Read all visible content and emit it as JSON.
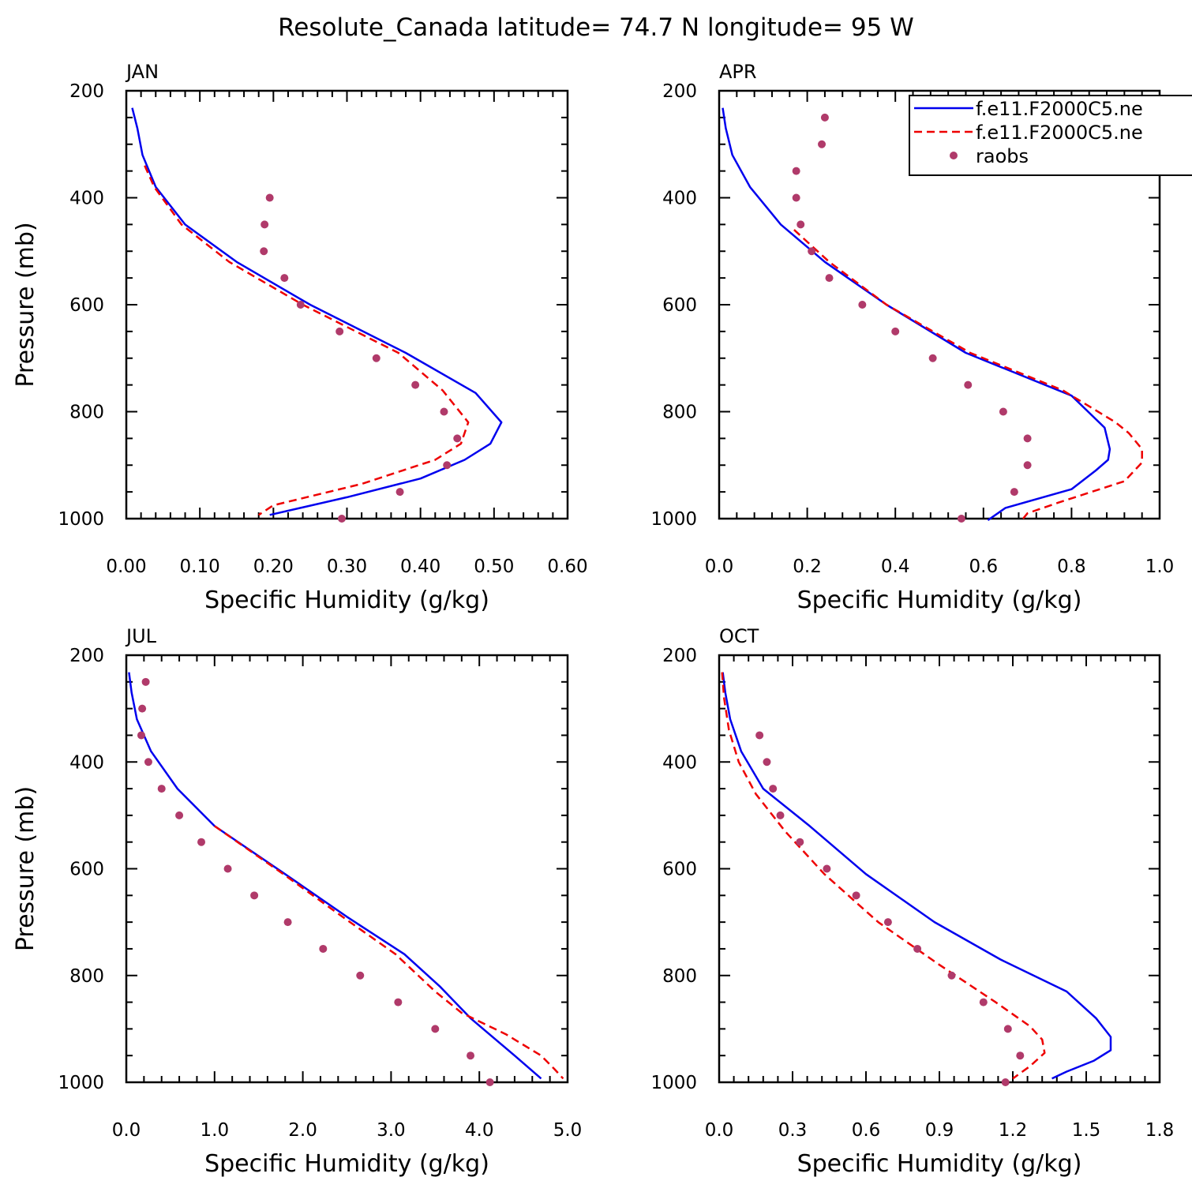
{
  "figure_title": "Resolute_Canada  latitude= 74.7 N longitude= 95 W",
  "legend": {
    "entries": [
      {
        "label": "f.e11.F2000C5.ne",
        "color": "#0000ee",
        "style": "solid"
      },
      {
        "label": "f.e11.F2000C5.ne",
        "color": "#ee0000",
        "style": "dashed"
      },
      {
        "label": "raobs",
        "color": "#b03a6a",
        "style": "dots"
      }
    ]
  },
  "chart_data": [
    {
      "type": "line",
      "title": "JAN",
      "xlabel": "Specific Humidity (g/kg)",
      "ylabel": "Pressure (mb)",
      "xlim": [
        0,
        0.6
      ],
      "ylim": [
        1000,
        200
      ],
      "x_ticks": [
        "0.00",
        "0.10",
        "0.20",
        "0.30",
        "0.40",
        "0.50",
        "0.60"
      ],
      "y_ticks": [
        "200",
        "400",
        "600",
        "800",
        "1000"
      ],
      "series": [
        {
          "name": "f.e11.F2000C5.ne",
          "color": "#0000ee",
          "style": "solid",
          "p": [
            232,
            270,
            320,
            380,
            450,
            520,
            600,
            690,
            765,
            820,
            860,
            890,
            925,
            960,
            993
          ],
          "q": [
            0.008,
            0.015,
            0.022,
            0.04,
            0.08,
            0.15,
            0.25,
            0.38,
            0.475,
            0.51,
            0.495,
            0.46,
            0.4,
            0.3,
            0.195
          ]
        },
        {
          "name": "f.e11.F2000C5.ne",
          "color": "#ee0000",
          "style": "dashed",
          "p": [
            340,
            380,
            450,
            520,
            600,
            690,
            760,
            820,
            860,
            890,
            935,
            975,
            993
          ],
          "q": [
            0.025,
            0.038,
            0.075,
            0.14,
            0.24,
            0.37,
            0.43,
            0.465,
            0.455,
            0.42,
            0.32,
            0.2,
            0.18
          ]
        },
        {
          "name": "raobs",
          "color": "#b03a6a",
          "style": "dots",
          "p": [
            400,
            450,
            500,
            550,
            600,
            650,
            700,
            750,
            800,
            850,
            900,
            950,
            1000
          ],
          "q": [
            0.195,
            0.188,
            0.187,
            0.215,
            0.237,
            0.29,
            0.34,
            0.393,
            0.432,
            0.45,
            0.436,
            0.372,
            0.293
          ]
        }
      ]
    },
    {
      "type": "line",
      "title": "APR",
      "xlabel": "Specific Humidity (g/kg)",
      "ylabel": "",
      "xlim": [
        0,
        1.0
      ],
      "ylim": [
        1000,
        200
      ],
      "x_ticks": [
        "0.0",
        "0.2",
        "0.4",
        "0.6",
        "0.8",
        "1.0"
      ],
      "y_ticks": [
        "200",
        "400",
        "600",
        "800",
        "1000"
      ],
      "series": [
        {
          "name": "f.e11.F2000C5.ne",
          "color": "#0000ee",
          "style": "solid",
          "p": [
            232,
            270,
            320,
            380,
            450,
            520,
            600,
            690,
            770,
            830,
            870,
            890,
            910,
            945,
            980,
            1003
          ],
          "q": [
            0.008,
            0.015,
            0.03,
            0.07,
            0.14,
            0.24,
            0.38,
            0.56,
            0.8,
            0.875,
            0.887,
            0.883,
            0.855,
            0.8,
            0.65,
            0.61
          ]
        },
        {
          "name": "f.e11.F2000C5.ne",
          "color": "#ee0000",
          "style": "dashed",
          "p": [
            460,
            520,
            600,
            690,
            760,
            820,
            840,
            870,
            895,
            930,
            970,
            990,
            1000
          ],
          "q": [
            0.17,
            0.25,
            0.38,
            0.57,
            0.78,
            0.9,
            0.93,
            0.96,
            0.96,
            0.92,
            0.77,
            0.7,
            0.69
          ]
        },
        {
          "name": "raobs",
          "color": "#b03a6a",
          "style": "dots",
          "p": [
            250,
            300,
            350,
            400,
            450,
            500,
            550,
            600,
            650,
            700,
            750,
            800,
            850,
            900,
            950,
            1000
          ],
          "q": [
            0.24,
            0.233,
            0.175,
            0.175,
            0.185,
            0.21,
            0.25,
            0.325,
            0.4,
            0.485,
            0.565,
            0.645,
            0.7,
            0.7,
            0.67,
            0.55
          ]
        }
      ]
    },
    {
      "type": "line",
      "title": "JUL",
      "xlabel": "Specific Humidity (g/kg)",
      "ylabel": "Pressure (mb)",
      "xlim": [
        0,
        5.0
      ],
      "ylim": [
        1000,
        200
      ],
      "x_ticks": [
        "0.0",
        "1.0",
        "2.0",
        "3.0",
        "4.0",
        "5.0"
      ],
      "y_ticks": [
        "200",
        "400",
        "600",
        "800",
        "1000"
      ],
      "series": [
        {
          "name": "f.e11.F2000C5.ne",
          "color": "#0000ee",
          "style": "solid",
          "p": [
            232,
            270,
            320,
            380,
            450,
            520,
            610,
            690,
            760,
            820,
            880,
            950,
            993
          ],
          "q": [
            0.03,
            0.06,
            0.12,
            0.28,
            0.58,
            1.0,
            1.8,
            2.5,
            3.15,
            3.55,
            3.9,
            4.4,
            4.7
          ]
        },
        {
          "name": "f.e11.F2000C5.ne",
          "color": "#ee0000",
          "style": "dashed",
          "p": [
            520,
            610,
            690,
            760,
            830,
            870,
            910,
            950,
            975,
            993
          ],
          "q": [
            1.0,
            1.78,
            2.45,
            3.05,
            3.5,
            3.8,
            4.3,
            4.7,
            4.85,
            4.95
          ]
        },
        {
          "name": "raobs",
          "color": "#b03a6a",
          "style": "dots",
          "p": [
            250,
            300,
            350,
            400,
            450,
            500,
            550,
            600,
            650,
            700,
            750,
            800,
            850,
            900,
            950,
            1000
          ],
          "q": [
            0.22,
            0.18,
            0.17,
            0.25,
            0.4,
            0.6,
            0.85,
            1.15,
            1.45,
            1.83,
            2.23,
            2.65,
            3.08,
            3.5,
            3.9,
            4.12
          ]
        }
      ]
    },
    {
      "type": "line",
      "title": "OCT",
      "xlabel": "Specific Humidity (g/kg)",
      "ylabel": "",
      "xlim": [
        0,
        1.8
      ],
      "ylim": [
        1000,
        200
      ],
      "x_ticks": [
        "0.0",
        "0.3",
        "0.6",
        "0.9",
        "1.2",
        "1.5",
        "1.8"
      ],
      "y_ticks": [
        "200",
        "400",
        "600",
        "800",
        "1000"
      ],
      "series": [
        {
          "name": "f.e11.F2000C5.ne",
          "color": "#0000ee",
          "style": "solid",
          "p": [
            232,
            270,
            320,
            380,
            450,
            520,
            610,
            700,
            770,
            830,
            880,
            915,
            940,
            960,
            980,
            993
          ],
          "q": [
            0.015,
            0.025,
            0.045,
            0.09,
            0.18,
            0.37,
            0.6,
            0.88,
            1.15,
            1.42,
            1.54,
            1.6,
            1.6,
            1.53,
            1.42,
            1.36
          ]
        },
        {
          "name": "f.e11.F2000C5.ne",
          "color": "#ee0000",
          "style": "dashed",
          "p": [
            232,
            280,
            340,
            400,
            460,
            530,
            610,
            700,
            780,
            850,
            895,
            920,
            945,
            970,
            993
          ],
          "q": [
            0.012,
            0.02,
            0.04,
            0.08,
            0.15,
            0.27,
            0.43,
            0.65,
            0.9,
            1.13,
            1.27,
            1.32,
            1.33,
            1.27,
            1.2
          ]
        },
        {
          "name": "raobs",
          "color": "#b03a6a",
          "style": "dots",
          "p": [
            350,
            400,
            450,
            500,
            550,
            600,
            650,
            700,
            750,
            800,
            850,
            900,
            950,
            1000
          ],
          "q": [
            0.165,
            0.195,
            0.22,
            0.25,
            0.33,
            0.44,
            0.56,
            0.69,
            0.81,
            0.95,
            1.08,
            1.18,
            1.23,
            1.17
          ]
        }
      ]
    }
  ]
}
